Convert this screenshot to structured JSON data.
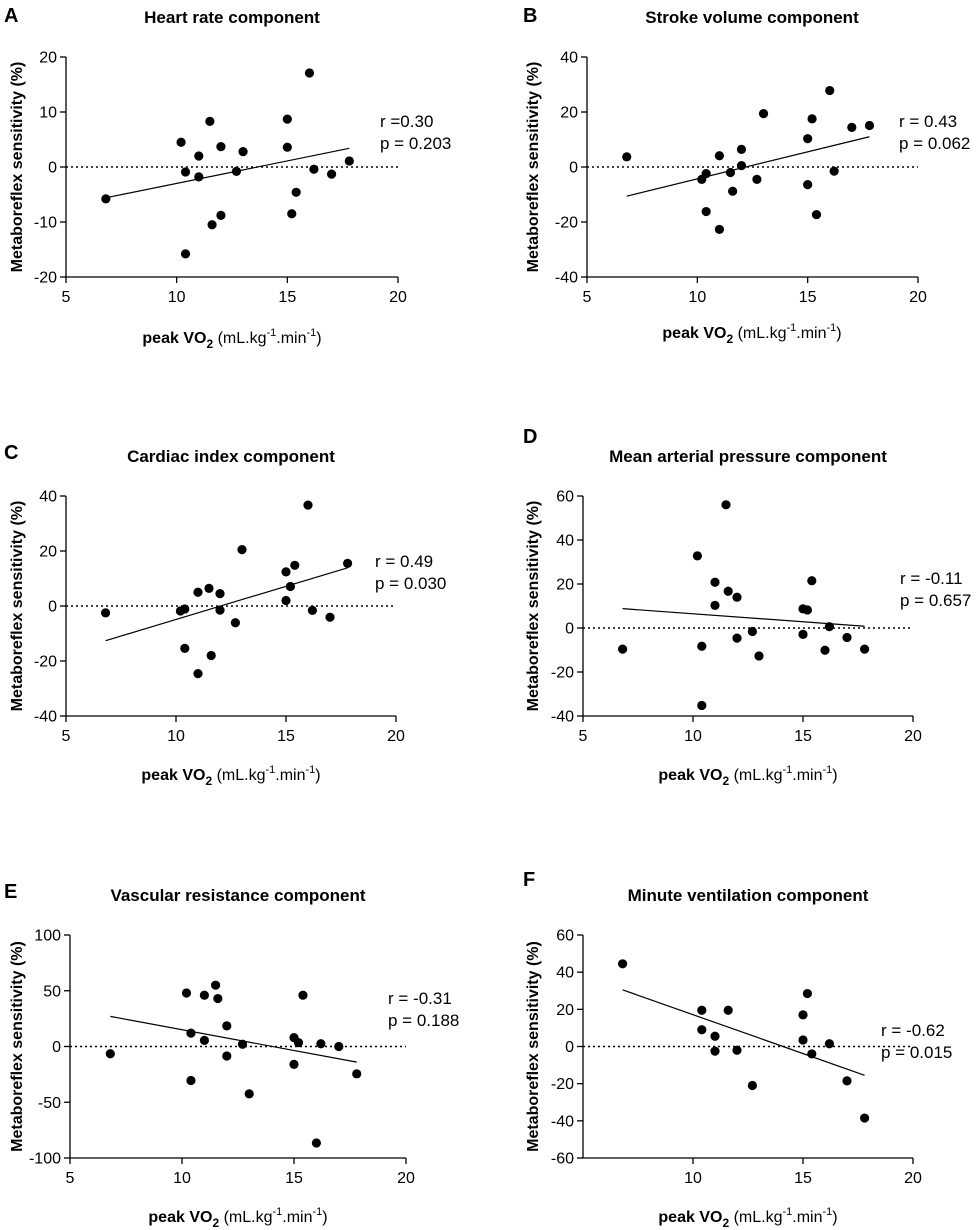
{
  "figure": {
    "xlabel_bold": "peak VO",
    "xlabel_sub": "2",
    "xlabel_units": " (mL.kg",
    "xlabel_sup1": "-1",
    "xlabel_mid": ".min",
    "xlabel_sup2": "-1",
    "xlabel_end": ")"
  },
  "chart_data": [
    {
      "letter": "A",
      "type": "scatter",
      "title": "Heart rate component",
      "ylabel": "Metaboreflex sensitivity (%)",
      "xlim": [
        5,
        20
      ],
      "xticks": [
        5,
        10,
        15,
        20
      ],
      "ylim": [
        -20,
        20
      ],
      "yticks": [
        -20,
        -10,
        0,
        10,
        20
      ],
      "stats": {
        "r": "r =0.30",
        "p": "p = 0.203"
      },
      "fit": [
        [
          6.8,
          -5.6
        ],
        [
          17.8,
          3.4
        ]
      ],
      "points": [
        [
          6.8,
          -5.8
        ],
        [
          10.2,
          4.5
        ],
        [
          10.4,
          -0.9
        ],
        [
          10.4,
          -15.8
        ],
        [
          11.0,
          -1.8
        ],
        [
          11.0,
          2.0
        ],
        [
          11.5,
          8.3
        ],
        [
          11.6,
          -10.5
        ],
        [
          12.0,
          3.7
        ],
        [
          12.0,
          -8.8
        ],
        [
          12.7,
          -0.8
        ],
        [
          13.0,
          2.8
        ],
        [
          15.0,
          8.7
        ],
        [
          15.0,
          3.6
        ],
        [
          15.2,
          -8.5
        ],
        [
          15.4,
          -4.6
        ],
        [
          16.0,
          17.1
        ],
        [
          16.2,
          -0.4
        ],
        [
          17.0,
          -1.3
        ],
        [
          17.8,
          1.1
        ]
      ]
    },
    {
      "letter": "B",
      "type": "scatter",
      "title": "Stroke volume component",
      "ylabel": "Metaboreflex sensitivity (%)",
      "xlim": [
        5,
        20
      ],
      "xticks": [
        5,
        10,
        15,
        20
      ],
      "ylim": [
        -40,
        40
      ],
      "yticks": [
        -40,
        -20,
        0,
        20,
        40
      ],
      "stats": {
        "r": "r = 0.43",
        "p": "p = 0.062"
      },
      "fit": [
        [
          6.8,
          -10.6
        ],
        [
          17.8,
          11.0
        ]
      ],
      "points": [
        [
          6.8,
          3.7
        ],
        [
          10.2,
          -4.5
        ],
        [
          10.4,
          -2.4
        ],
        [
          10.4,
          -16.2
        ],
        [
          11.0,
          4.1
        ],
        [
          11.0,
          -22.7
        ],
        [
          11.5,
          -2.0
        ],
        [
          11.6,
          -8.8
        ],
        [
          12.0,
          6.4
        ],
        [
          12.0,
          0.5
        ],
        [
          12.7,
          -4.5
        ],
        [
          13.0,
          19.4
        ],
        [
          15.0,
          10.3
        ],
        [
          15.0,
          -6.4
        ],
        [
          15.2,
          17.5
        ],
        [
          15.4,
          -17.3
        ],
        [
          16.0,
          27.8
        ],
        [
          16.2,
          -1.5
        ],
        [
          17.0,
          14.4
        ],
        [
          17.8,
          15.1
        ]
      ]
    },
    {
      "letter": "C",
      "type": "scatter",
      "title": "Cardiac index component",
      "ylabel": "Metaboreflex sensitivity (%)",
      "xlim": [
        5,
        20
      ],
      "xticks": [
        5,
        10,
        15,
        20
      ],
      "ylim": [
        -40,
        40
      ],
      "yticks": [
        -40,
        -20,
        0,
        20,
        40
      ],
      "stats": {
        "r": "r = 0.49",
        "p": "p = 0.030"
      },
      "fit": [
        [
          6.8,
          -12.6
        ],
        [
          17.8,
          13.9
        ]
      ],
      "points": [
        [
          6.8,
          -2.5
        ],
        [
          10.2,
          -1.8
        ],
        [
          10.4,
          -1.1
        ],
        [
          10.4,
          -15.4
        ],
        [
          11.0,
          5.0
        ],
        [
          11.0,
          -24.6
        ],
        [
          11.5,
          6.4
        ],
        [
          11.6,
          -18.0
        ],
        [
          12.0,
          4.5
        ],
        [
          12.0,
          -1.5
        ],
        [
          12.7,
          -6.1
        ],
        [
          13.0,
          20.5
        ],
        [
          15.0,
          12.4
        ],
        [
          15.0,
          2.0
        ],
        [
          15.2,
          7.1
        ],
        [
          15.4,
          14.8
        ],
        [
          16.0,
          36.7
        ],
        [
          16.2,
          -1.6
        ],
        [
          17.0,
          -4.1
        ],
        [
          17.8,
          15.5
        ]
      ]
    },
    {
      "letter": "D",
      "type": "scatter",
      "title": "Mean arterial pressure component",
      "ylabel": "Metaboreflex sensitivity (%)",
      "xlim": [
        5,
        20
      ],
      "xticks": [
        5,
        10,
        15,
        20
      ],
      "ylim": [
        -40,
        60
      ],
      "yticks": [
        -40,
        -20,
        0,
        20,
        40,
        60
      ],
      "stats": {
        "r": "r = -0.11",
        "p": "p = 0.657"
      },
      "fit": [
        [
          6.8,
          8.8
        ],
        [
          17.8,
          0.8
        ]
      ],
      "points": [
        [
          6.8,
          -9.6
        ],
        [
          10.2,
          32.8
        ],
        [
          10.4,
          -8.3
        ],
        [
          10.4,
          -35.2
        ],
        [
          11.0,
          20.8
        ],
        [
          11.0,
          10.3
        ],
        [
          11.5,
          56.0
        ],
        [
          11.6,
          16.7
        ],
        [
          12.0,
          14.0
        ],
        [
          12.0,
          -4.6
        ],
        [
          12.7,
          -1.6
        ],
        [
          13.0,
          -12.7
        ],
        [
          15.0,
          8.7
        ],
        [
          15.0,
          -2.9
        ],
        [
          15.2,
          8.2
        ],
        [
          15.4,
          21.5
        ],
        [
          16.0,
          -10.1
        ],
        [
          16.2,
          0.6
        ],
        [
          17.0,
          -4.3
        ],
        [
          17.8,
          -9.6
        ]
      ]
    },
    {
      "letter": "E",
      "type": "scatter",
      "title": "Vascular resistance component",
      "ylabel": "Metaboreflex sensitivity (%)",
      "xlim": [
        5,
        20
      ],
      "xticks": [
        5,
        10,
        15,
        20
      ],
      "ylim": [
        -100,
        100
      ],
      "yticks": [
        -100,
        -50,
        0,
        50,
        100
      ],
      "stats": {
        "r": "r = -0.31",
        "p": "p = 0.188"
      },
      "fit": [
        [
          6.8,
          27.0
        ],
        [
          17.8,
          -14.0
        ]
      ],
      "points": [
        [
          6.8,
          -6.5
        ],
        [
          10.2,
          48.0
        ],
        [
          10.4,
          12.0
        ],
        [
          10.4,
          -30.5
        ],
        [
          11.0,
          46.0
        ],
        [
          11.0,
          5.5
        ],
        [
          11.5,
          55.0
        ],
        [
          11.6,
          43.0
        ],
        [
          12.0,
          18.5
        ],
        [
          12.0,
          -8.5
        ],
        [
          12.7,
          2.0
        ],
        [
          13.0,
          -42.5
        ],
        [
          15.0,
          8.0
        ],
        [
          15.0,
          -16.0
        ],
        [
          15.2,
          3.5
        ],
        [
          15.4,
          46.0
        ],
        [
          16.0,
          -86.5
        ],
        [
          16.2,
          2.5
        ],
        [
          17.0,
          0.0
        ],
        [
          17.8,
          -24.5
        ]
      ]
    },
    {
      "letter": "F",
      "type": "scatter",
      "title": "Minute ventilation component",
      "ylabel": "Metaboreflex sensitivity (%)",
      "xlim": [
        5,
        20
      ],
      "xticks": [
        10,
        15,
        20
      ],
      "ylim": [
        -60,
        60
      ],
      "yticks": [
        -60,
        -40,
        -20,
        0,
        20,
        40,
        60
      ],
      "stats": {
        "r": "r = -0.62",
        "p": "p = 0.015"
      },
      "fit": [
        [
          6.8,
          30.5
        ],
        [
          17.8,
          -15.5
        ]
      ],
      "points": [
        [
          6.8,
          44.5
        ],
        [
          10.4,
          19.5
        ],
        [
          10.4,
          9.0
        ],
        [
          11.0,
          5.5
        ],
        [
          11.0,
          -2.5
        ],
        [
          11.6,
          19.5
        ],
        [
          12.0,
          -2.0
        ],
        [
          12.7,
          -21.0
        ],
        [
          15.0,
          17.0
        ],
        [
          15.0,
          3.5
        ],
        [
          15.2,
          28.5
        ],
        [
          15.4,
          -4.0
        ],
        [
          16.2,
          1.5
        ],
        [
          17.0,
          -18.5
        ],
        [
          17.8,
          -38.5
        ]
      ]
    }
  ]
}
